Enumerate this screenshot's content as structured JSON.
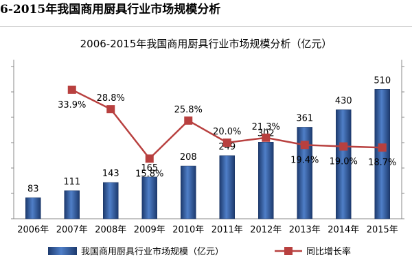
{
  "page": {
    "heading": "6-2015年我国商用厨具行业市场规模分析"
  },
  "chart_data": {
    "type": "bar",
    "title": "2006-2015年我国商用厨具行业市场规模分析（亿元）",
    "categories": [
      "2006年",
      "2007年",
      "2008年",
      "2009年",
      "2010年",
      "2011年",
      "2012年",
      "2013年",
      "2014年",
      "2015年"
    ],
    "series": [
      {
        "name": "我国商用厨具行业市场规模（亿元）",
        "type": "bar",
        "axis": "left",
        "values": [
          83,
          111,
          143,
          165,
          208,
          249,
          302,
          361,
          430,
          510
        ],
        "labels": [
          "83",
          "111",
          "143",
          "165",
          "208",
          "249",
          "302",
          "361",
          "430",
          "510"
        ],
        "color": "#2e5597"
      },
      {
        "name": "同比增长率",
        "type": "line",
        "axis": "right",
        "values": [
          null,
          33.9,
          28.8,
          15.8,
          25.8,
          20.0,
          21.3,
          19.4,
          19.0,
          18.7
        ],
        "labels": [
          "",
          "33.9%",
          "28.8%",
          "15.8%",
          "25.8%",
          "20.0%",
          "21.3%",
          "19.4%",
          "19.0%",
          "18.7%"
        ],
        "color": "#b8403f"
      }
    ],
    "ylim_left": [
      0,
      600
    ],
    "ylim_right": [
      0,
      40
    ],
    "grid": false,
    "legend_position": "bottom"
  }
}
